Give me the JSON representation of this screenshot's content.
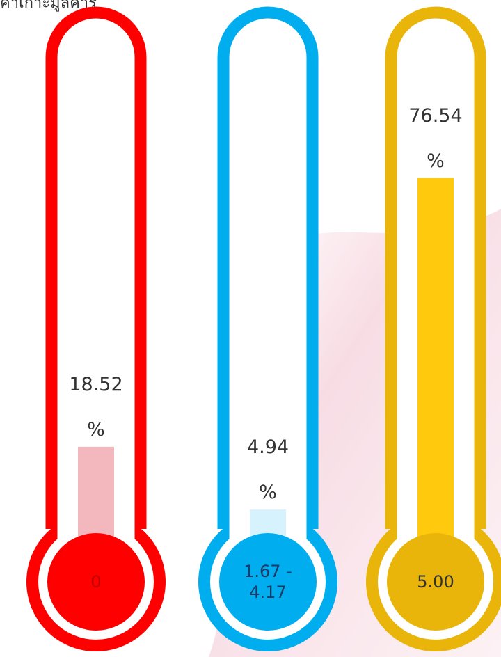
{
  "header": {
    "text": "ค่าเกาะมูลค่าร"
  },
  "chart_data": {
    "type": "bar",
    "categories": [
      "0",
      "1.67 - 4.17",
      "5.00"
    ],
    "values": [
      18.52,
      4.94,
      76.54
    ],
    "value_labels": [
      [
        "18.52",
        "%"
      ],
      [
        "4.94",
        "%"
      ],
      [
        "76.54",
        "%"
      ]
    ],
    "bulb_labels": [
      [
        "0"
      ],
      [
        "1.67 -",
        "4.17"
      ],
      [
        "5.00"
      ]
    ],
    "ylim": [
      0,
      100
    ],
    "grid": false,
    "colors": {
      "tube": [
        "#ff0000",
        "#00aeef",
        "#e9b50a"
      ],
      "bulb": [
        "#ff0000",
        "#00aeef",
        "#e9b50a"
      ],
      "fill": [
        "#f2b8be",
        "#d6f2fc",
        "#ffc90e"
      ],
      "bulb_text": [
        "#c00000",
        "#1f3864",
        "#333333"
      ]
    }
  }
}
